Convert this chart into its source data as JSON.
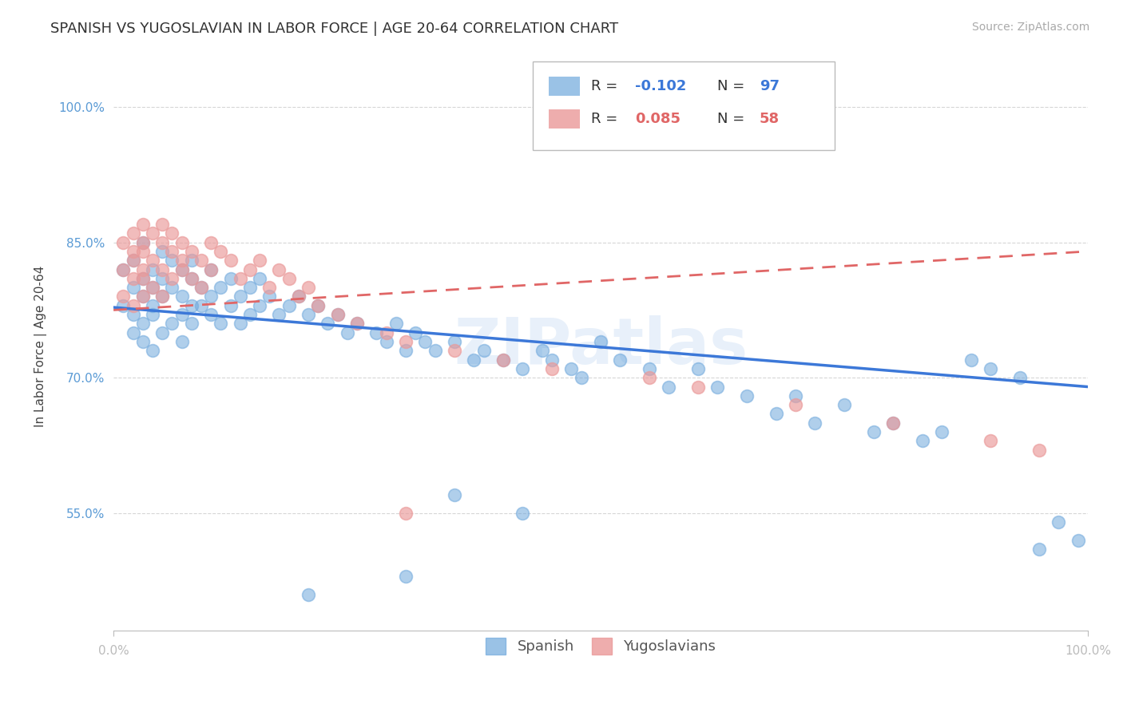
{
  "title": "SPANISH VS YUGOSLAVIAN IN LABOR FORCE | AGE 20-64 CORRELATION CHART",
  "source": "Source: ZipAtlas.com",
  "ylabel": "In Labor Force | Age 20-64",
  "xlim": [
    0.0,
    1.0
  ],
  "ylim": [
    0.42,
    1.05
  ],
  "yticks": [
    0.55,
    0.7,
    0.85,
    1.0
  ],
  "ytick_labels": [
    "55.0%",
    "70.0%",
    "85.0%",
    "100.0%"
  ],
  "xtick_labels": [
    "0.0%",
    "100.0%"
  ],
  "spanish_color": "#6fa8dc",
  "yugoslav_color": "#ea9999",
  "spanish_line_color": "#3c78d8",
  "yugoslav_line_color": "#e06666",
  "background_color": "#ffffff",
  "watermark": "ZIPatlas",
  "legend_R_color_spanish": "#3c78d8",
  "legend_R_color_yugoslav": "#e06666",
  "spanish_x": [
    0.01,
    0.01,
    0.02,
    0.02,
    0.02,
    0.02,
    0.03,
    0.03,
    0.03,
    0.03,
    0.03,
    0.04,
    0.04,
    0.04,
    0.04,
    0.04,
    0.05,
    0.05,
    0.05,
    0.05,
    0.06,
    0.06,
    0.06,
    0.07,
    0.07,
    0.07,
    0.07,
    0.08,
    0.08,
    0.08,
    0.08,
    0.09,
    0.09,
    0.1,
    0.1,
    0.1,
    0.11,
    0.11,
    0.12,
    0.12,
    0.13,
    0.13,
    0.14,
    0.14,
    0.15,
    0.15,
    0.16,
    0.17,
    0.18,
    0.19,
    0.2,
    0.21,
    0.22,
    0.23,
    0.24,
    0.25,
    0.27,
    0.28,
    0.29,
    0.3,
    0.31,
    0.32,
    0.33,
    0.35,
    0.37,
    0.38,
    0.4,
    0.42,
    0.44,
    0.45,
    0.47,
    0.48,
    0.5,
    0.52,
    0.55,
    0.57,
    0.6,
    0.62,
    0.65,
    0.68,
    0.7,
    0.72,
    0.75,
    0.78,
    0.8,
    0.83,
    0.85,
    0.88,
    0.9,
    0.93,
    0.95,
    0.97,
    0.99,
    0.35,
    0.42,
    0.3,
    0.2
  ],
  "spanish_y": [
    0.78,
    0.82,
    0.8,
    0.77,
    0.75,
    0.83,
    0.79,
    0.76,
    0.81,
    0.74,
    0.85,
    0.78,
    0.8,
    0.73,
    0.82,
    0.77,
    0.79,
    0.84,
    0.75,
    0.81,
    0.8,
    0.76,
    0.83,
    0.79,
    0.82,
    0.77,
    0.74,
    0.81,
    0.78,
    0.76,
    0.83,
    0.8,
    0.78,
    0.82,
    0.79,
    0.77,
    0.8,
    0.76,
    0.81,
    0.78,
    0.79,
    0.76,
    0.8,
    0.77,
    0.81,
    0.78,
    0.79,
    0.77,
    0.78,
    0.79,
    0.77,
    0.78,
    0.76,
    0.77,
    0.75,
    0.76,
    0.75,
    0.74,
    0.76,
    0.73,
    0.75,
    0.74,
    0.73,
    0.74,
    0.72,
    0.73,
    0.72,
    0.71,
    0.73,
    0.72,
    0.71,
    0.7,
    0.74,
    0.72,
    0.71,
    0.69,
    0.71,
    0.69,
    0.68,
    0.66,
    0.68,
    0.65,
    0.67,
    0.64,
    0.65,
    0.63,
    0.64,
    0.72,
    0.71,
    0.7,
    0.51,
    0.54,
    0.52,
    0.57,
    0.55,
    0.48,
    0.46
  ],
  "yugoslav_x": [
    0.01,
    0.01,
    0.01,
    0.02,
    0.02,
    0.02,
    0.02,
    0.02,
    0.03,
    0.03,
    0.03,
    0.03,
    0.03,
    0.03,
    0.04,
    0.04,
    0.04,
    0.05,
    0.05,
    0.05,
    0.05,
    0.06,
    0.06,
    0.06,
    0.07,
    0.07,
    0.07,
    0.08,
    0.08,
    0.09,
    0.09,
    0.1,
    0.1,
    0.11,
    0.12,
    0.13,
    0.14,
    0.15,
    0.16,
    0.17,
    0.18,
    0.19,
    0.2,
    0.21,
    0.23,
    0.25,
    0.28,
    0.3,
    0.35,
    0.4,
    0.45,
    0.55,
    0.6,
    0.7,
    0.8,
    0.9,
    0.95,
    0.3
  ],
  "yugoslav_y": [
    0.82,
    0.79,
    0.85,
    0.84,
    0.81,
    0.78,
    0.86,
    0.83,
    0.85,
    0.82,
    0.79,
    0.87,
    0.84,
    0.81,
    0.83,
    0.8,
    0.86,
    0.85,
    0.82,
    0.79,
    0.87,
    0.84,
    0.81,
    0.86,
    0.85,
    0.82,
    0.83,
    0.84,
    0.81,
    0.83,
    0.8,
    0.85,
    0.82,
    0.84,
    0.83,
    0.81,
    0.82,
    0.83,
    0.8,
    0.82,
    0.81,
    0.79,
    0.8,
    0.78,
    0.77,
    0.76,
    0.75,
    0.74,
    0.73,
    0.72,
    0.71,
    0.7,
    0.69,
    0.67,
    0.65,
    0.63,
    0.62,
    0.55
  ],
  "title_fontsize": 13,
  "axis_label_fontsize": 11,
  "tick_fontsize": 11,
  "legend_fontsize": 13,
  "source_fontsize": 10
}
